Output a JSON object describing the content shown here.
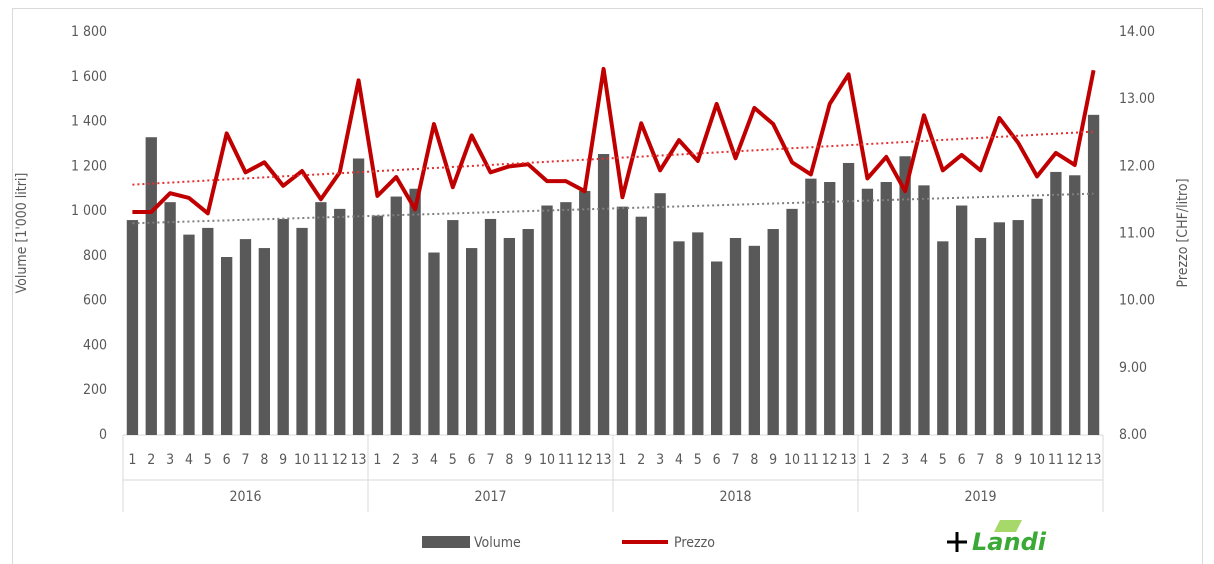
{
  "chart_data": {
    "type": "bar",
    "categories": [
      "1",
      "2",
      "3",
      "4",
      "5",
      "6",
      "7",
      "8",
      "9",
      "10",
      "11",
      "12",
      "13",
      "1",
      "2",
      "3",
      "4",
      "5",
      "6",
      "7",
      "8",
      "9",
      "10",
      "11",
      "12",
      "13",
      "1",
      "2",
      "3",
      "4",
      "5",
      "6",
      "7",
      "8",
      "9",
      "10",
      "11",
      "12",
      "13",
      "1",
      "2",
      "3",
      "4",
      "5",
      "6",
      "7",
      "8",
      "9",
      "10",
      "11",
      "12",
      "13"
    ],
    "category_groups": [
      "2016",
      "2017",
      "2018",
      "2019"
    ],
    "series": [
      {
        "name": "Volume",
        "type": "bar",
        "color": "#595959",
        "trendline": true,
        "trendline_color": "#7f7f7f",
        "values": [
          960,
          1330,
          1040,
          895,
          925,
          795,
          875,
          835,
          965,
          925,
          1040,
          1010,
          1235,
          980,
          1065,
          1100,
          815,
          960,
          835,
          965,
          880,
          920,
          1025,
          1040,
          1090,
          1255,
          1020,
          975,
          1080,
          865,
          905,
          775,
          880,
          845,
          920,
          1010,
          1145,
          1130,
          1215,
          1100,
          1130,
          1245,
          1115,
          865,
          1025,
          880,
          950,
          960,
          1055,
          1175,
          1160,
          1430
        ]
      },
      {
        "name": "Prezzo",
        "type": "line",
        "axis": "y2",
        "color": "#c00000",
        "trendline": true,
        "trendline_color": "#e03030",
        "values": [
          11.32,
          11.32,
          11.6,
          11.53,
          11.3,
          12.49,
          11.91,
          12.06,
          11.71,
          11.93,
          11.51,
          11.91,
          13.28,
          11.56,
          11.84,
          11.36,
          12.63,
          11.69,
          12.46,
          11.91,
          12.0,
          12.03,
          11.78,
          11.78,
          11.63,
          13.45,
          11.54,
          12.64,
          11.94,
          12.39,
          12.08,
          12.93,
          12.12,
          12.87,
          12.63,
          12.06,
          11.88,
          12.93,
          13.37,
          11.82,
          12.14,
          11.63,
          12.76,
          11.94,
          12.17,
          11.94,
          12.72,
          12.35,
          11.85,
          12.2,
          12.02,
          13.43
        ]
      }
    ],
    "ylabel": "Volume [1'000 litri]",
    "y2label": "Prezzo [CHF/litro]",
    "ylim": [
      0,
      1800
    ],
    "yticks": [
      0,
      200,
      400,
      600,
      800,
      {
        "value": 1000,
        "label": "1 000"
      },
      {
        "value": 1200,
        "label": "1 200"
      },
      {
        "value": 1400,
        "label": "1 400"
      },
      {
        "value": 1600,
        "label": "1 600"
      },
      {
        "value": 1800,
        "label": "1 800"
      }
    ],
    "y2lim": [
      8,
      14
    ],
    "y2ticks": [
      {
        "value": 8,
        "label": "8.00"
      },
      {
        "value": 9,
        "label": "9.00"
      },
      {
        "value": 10,
        "label": "10.00"
      },
      {
        "value": 11,
        "label": "11.00"
      },
      {
        "value": 12,
        "label": "12.00"
      },
      {
        "value": 13,
        "label": "13.00"
      },
      {
        "value": 14,
        "label": "14.00"
      }
    ],
    "grid": false,
    "legend": "bottom",
    "logo": "Landi"
  }
}
